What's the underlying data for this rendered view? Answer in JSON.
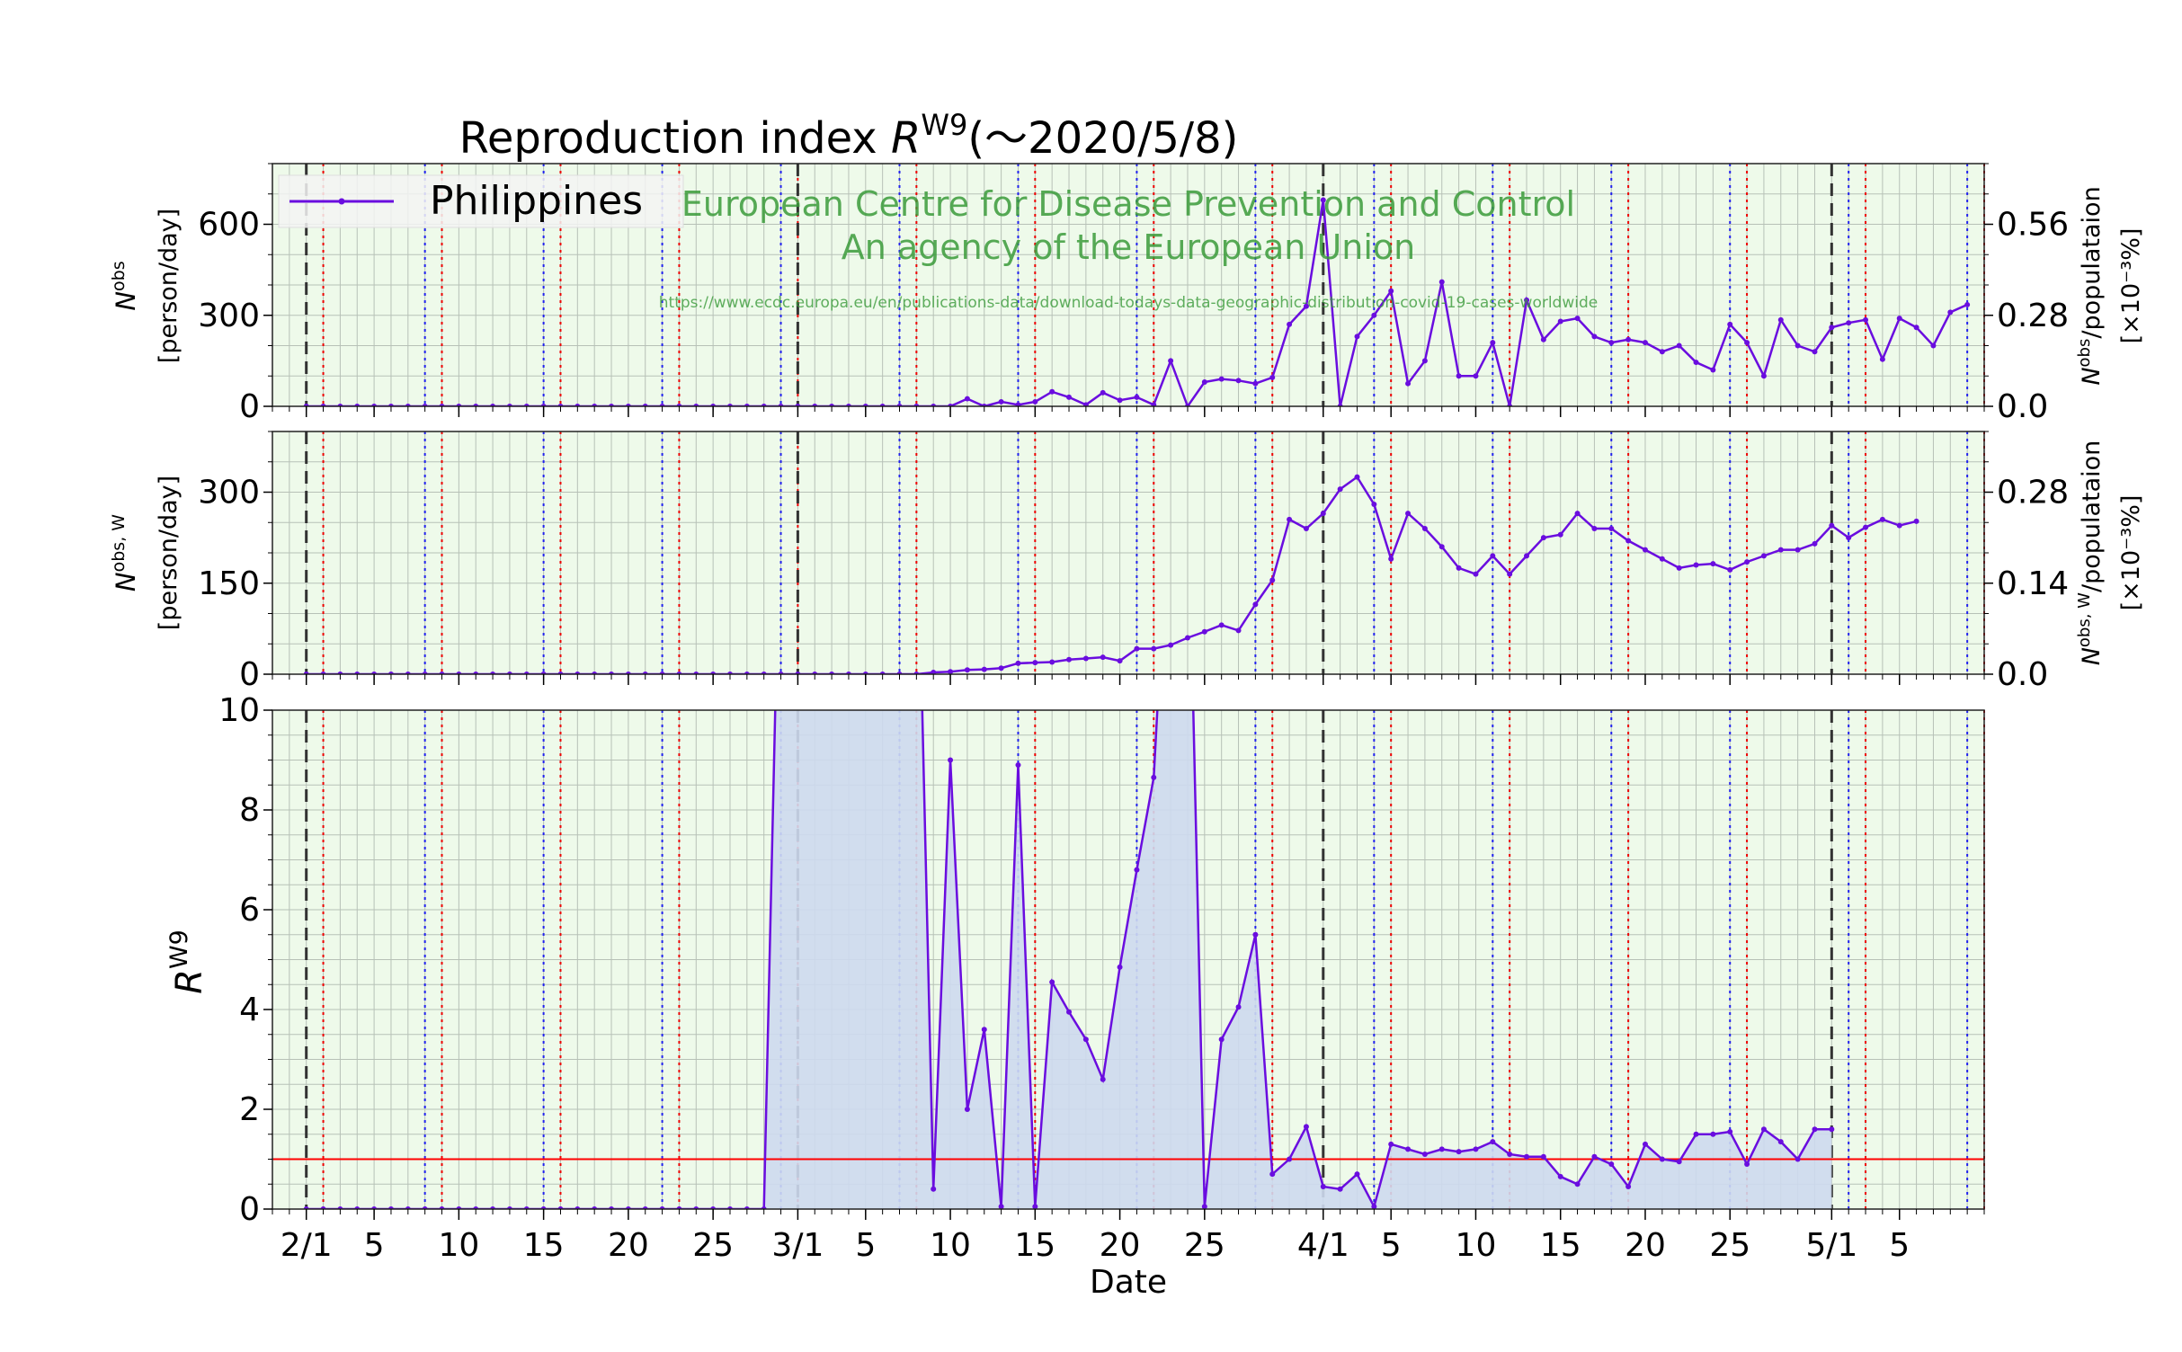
{
  "chart_data": {
    "type": "line",
    "title_pre": "Reproduction index ",
    "title_sym": "R",
    "title_sup": "W9",
    "title_post": "(～2020/5/8)",
    "legend": "Philippines",
    "watermark": {
      "line1": "European Centre for Disease Prevention and Control",
      "line2": "An agency of the European Union",
      "url": "https://www.ecdc.europa.eu/en/publications-data/download-todays-data-geographic-distribution-covid-19-cases-worldwide"
    },
    "xlabel": "Date",
    "x_tick_labels": [
      "2/1",
      "5",
      "10",
      "15",
      "20",
      "25",
      "3/1",
      "5",
      "10",
      "15",
      "20",
      "25",
      "4/1",
      "5",
      "10",
      "15",
      "20",
      "25",
      "5/1",
      "5"
    ],
    "x_tick_days": [
      0,
      4,
      9,
      14,
      19,
      24,
      29,
      33,
      38,
      43,
      48,
      53,
      60,
      64,
      69,
      74,
      79,
      84,
      90,
      94
    ],
    "x_range_days": [
      -2,
      99
    ],
    "x_day0": "2020-02-01",
    "month_lines_days": [
      0,
      29,
      60,
      90
    ],
    "weekly_red_lines_start_day": 1,
    "weekly_blue_lines_start_day": 7,
    "series_color": "#6a0ddf",
    "panel1": {
      "ylabel_sym": "N",
      "ylabel_sup": "obs",
      "ylabel_unit": "[person/day]",
      "yticks": [
        "0",
        "300",
        "600"
      ],
      "ylim": [
        0,
        800
      ],
      "right_ylabel": "N^obs/populataion [×10⁻³%]",
      "right_ylabel_sym": "N",
      "right_ylabel_sup": "obs",
      "right_ylabel_rest": "/populataion",
      "right_ylabel_unit": "[×10⁻³%]",
      "right_yticks": [
        "0.0",
        "0.28",
        "0.56"
      ],
      "start_day": 0,
      "values": [
        0,
        0,
        0,
        0,
        0,
        0,
        0,
        0,
        0,
        0,
        0,
        0,
        0,
        0,
        0,
        0,
        0,
        0,
        0,
        0,
        0,
        0,
        0,
        0,
        0,
        0,
        0,
        0,
        0,
        0,
        0,
        0,
        0,
        0,
        0,
        0,
        0,
        0,
        0,
        25,
        0,
        15,
        5,
        15,
        48,
        30,
        5,
        45,
        20,
        30,
        5,
        150,
        0,
        80,
        90,
        85,
        75,
        95,
        270,
        330,
        680,
        0,
        230,
        300,
        380,
        75,
        150,
        410,
        100,
        100,
        210,
        0,
        350,
        220,
        280,
        290,
        230,
        210,
        220,
        210,
        180,
        200,
        145,
        120,
        270,
        210,
        100,
        285,
        200,
        180,
        260,
        275,
        285,
        155,
        290,
        260,
        200,
        310,
        335
      ]
    },
    "panel2": {
      "ylabel_sym": "N",
      "ylabel_sup": "obs, W",
      "ylabel_unit": "[person/day]",
      "yticks": [
        "0",
        "150",
        "300"
      ],
      "ylim": [
        0,
        400
      ],
      "right_ylabel_sym": "N",
      "right_ylabel_sup": "obs, W",
      "right_ylabel_rest": "/populataion",
      "right_ylabel_unit": "[×10⁻³%]",
      "right_yticks": [
        "0.0",
        "0.14",
        "0.28"
      ],
      "start_day": 0,
      "values": [
        0,
        0,
        0,
        0,
        0,
        0,
        0,
        0,
        0,
        0,
        0,
        0,
        0,
        0,
        0,
        0,
        0,
        0,
        0,
        0,
        0,
        0,
        0,
        0,
        0,
        0,
        0,
        0,
        0,
        0,
        0,
        0,
        0,
        0,
        0,
        0,
        0,
        3,
        4,
        7,
        8,
        10,
        18,
        19,
        20,
        24,
        26,
        28,
        22,
        42,
        42,
        48,
        60,
        70,
        81,
        72,
        115,
        155,
        255,
        240,
        265,
        305,
        325,
        280,
        190,
        265,
        240,
        210,
        175,
        165,
        195,
        165,
        195,
        225,
        230,
        265,
        240,
        240,
        220,
        205,
        190,
        175,
        180,
        182,
        172,
        185,
        195,
        205,
        205,
        215,
        245,
        225,
        242,
        255,
        245,
        252
      ]
    },
    "panel3": {
      "ylabel_sym": "R",
      "ylabel_sup": "W9",
      "yticks": [
        "0",
        "2",
        "4",
        "6",
        "8",
        "10"
      ],
      "ylim": [
        0,
        10
      ],
      "reference_line": 1,
      "reference_color": "#ff0000",
      "fill_color": "#cdd9ee",
      "start_day": 0,
      "values": [
        0,
        0,
        0,
        0,
        0,
        0,
        0,
        0,
        0,
        0,
        0,
        0,
        0,
        0,
        0,
        0,
        0,
        0,
        0,
        0,
        0,
        0,
        0,
        0,
        0,
        0,
        0,
        0,
        null,
        null,
        null,
        null,
        null,
        null,
        null,
        null,
        null,
        0.4,
        9.0,
        2.0,
        3.6,
        0.05,
        8.9,
        0.05,
        4.55,
        3.95,
        3.4,
        2.6,
        4.85,
        6.8,
        8.65,
        null,
        null,
        0.05,
        3.4,
        4.05,
        5.5,
        0.7,
        1.0,
        1.65,
        0.45,
        0.4,
        0.7,
        0.05,
        1.3,
        1.2,
        1.1,
        1.2,
        1.15,
        1.2,
        1.35,
        1.1,
        1.05,
        1.05,
        0.65,
        0.5,
        1.05,
        0.9,
        0.45,
        1.3,
        1.0,
        0.95,
        1.5,
        1.5,
        1.55,
        0.9,
        1.6,
        1.35,
        1.0,
        1.6,
        1.6
      ]
    }
  }
}
